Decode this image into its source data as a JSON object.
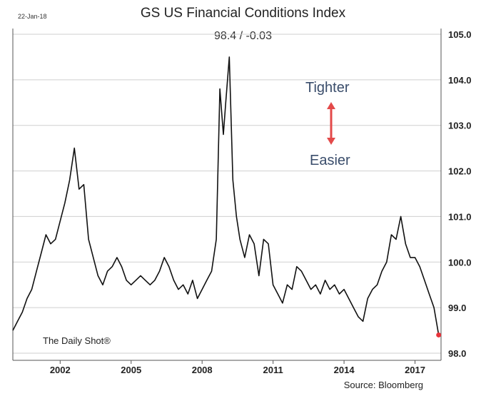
{
  "header": {
    "date": "22-Jan-18",
    "title": "GS US Financial Conditions Index",
    "value_text": "98.4  /  -0.03"
  },
  "annotations": {
    "tighter": "Tighter",
    "easier": "Easier",
    "arrow_color": "#e34a4a"
  },
  "footer": {
    "brand": "The Daily Shot®",
    "source": "Source: Bloomberg"
  },
  "colors": {
    "line": "#111111",
    "last_point": "#e8333a",
    "grid": "#cfcfcf",
    "axis": "#555555"
  },
  "chart_data": {
    "type": "line",
    "title": "GS US Financial Conditions Index",
    "xlabel": "",
    "ylabel": "",
    "xlim": [
      2000.0,
      2018.1
    ],
    "ylim": [
      98.0,
      105.0
    ],
    "x_ticks": [
      2002,
      2005,
      2008,
      2011,
      2014,
      2017
    ],
    "x_tick_labels": [
      "2002",
      "2005",
      "2008",
      "2011",
      "2014",
      "2017"
    ],
    "y_ticks": [
      98.0,
      99.0,
      100.0,
      101.0,
      102.0,
      103.0,
      104.0,
      105.0
    ],
    "y_tick_labels": [
      "98.0",
      "99.0",
      "100.0",
      "101.0",
      "102.0",
      "103.0",
      "104.0",
      "105.0"
    ],
    "y_axis_side": "right",
    "grid": "horizontal",
    "last_value": 98.4,
    "change": -0.03,
    "series": [
      {
        "x": [
          2000.0,
          2000.2,
          2000.4,
          2000.6,
          2000.8,
          2001.0,
          2001.2,
          2001.4,
          2001.6,
          2001.8,
          2002.0,
          2002.2,
          2002.4,
          2002.6,
          2002.8,
          2003.0,
          2003.2,
          2003.4,
          2003.6,
          2003.8,
          2004.0,
          2004.2,
          2004.4,
          2004.6,
          2004.8,
          2005.0,
          2005.2,
          2005.4,
          2005.6,
          2005.8,
          2006.0,
          2006.2,
          2006.4,
          2006.6,
          2006.8,
          2007.0,
          2007.2,
          2007.4,
          2007.6,
          2007.8,
          2008.0,
          2008.2,
          2008.4,
          2008.6,
          2008.75,
          2008.9,
          2009.0,
          2009.15,
          2009.3,
          2009.45,
          2009.6,
          2009.8,
          2010.0,
          2010.2,
          2010.4,
          2010.6,
          2010.8,
          2011.0,
          2011.2,
          2011.4,
          2011.6,
          2011.8,
          2012.0,
          2012.2,
          2012.4,
          2012.6,
          2012.8,
          2013.0,
          2013.2,
          2013.4,
          2013.6,
          2013.8,
          2014.0,
          2014.2,
          2014.4,
          2014.6,
          2014.8,
          2015.0,
          2015.2,
          2015.4,
          2015.6,
          2015.8,
          2016.0,
          2016.2,
          2016.4,
          2016.6,
          2016.8,
          2017.0,
          2017.2,
          2017.4,
          2017.6,
          2017.8,
          2018.0
        ],
        "values": [
          98.5,
          98.7,
          98.9,
          99.2,
          99.4,
          99.8,
          100.2,
          100.6,
          100.4,
          100.5,
          100.9,
          101.3,
          101.8,
          102.5,
          101.6,
          101.7,
          100.5,
          100.1,
          99.7,
          99.5,
          99.8,
          99.9,
          100.1,
          99.9,
          99.6,
          99.5,
          99.6,
          99.7,
          99.6,
          99.5,
          99.6,
          99.8,
          100.1,
          99.9,
          99.6,
          99.4,
          99.5,
          99.3,
          99.6,
          99.2,
          99.4,
          99.6,
          99.8,
          100.5,
          103.8,
          102.8,
          103.5,
          104.5,
          101.8,
          101.0,
          100.5,
          100.1,
          100.6,
          100.4,
          99.7,
          100.5,
          100.4,
          99.5,
          99.3,
          99.1,
          99.5,
          99.4,
          99.9,
          99.8,
          99.6,
          99.4,
          99.5,
          99.3,
          99.6,
          99.4,
          99.5,
          99.3,
          99.4,
          99.2,
          99.0,
          98.8,
          98.7,
          99.2,
          99.4,
          99.5,
          99.8,
          100.0,
          100.6,
          100.5,
          101.0,
          100.4,
          100.1,
          100.1,
          99.9,
          99.6,
          99.3,
          99.0,
          98.4
        ]
      }
    ]
  }
}
